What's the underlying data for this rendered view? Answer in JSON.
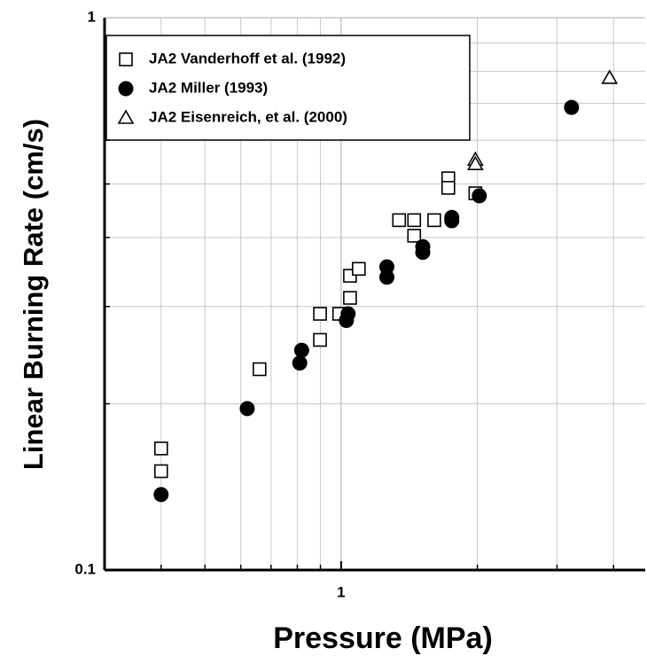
{
  "chart_data": {
    "type": "scatter",
    "xlabel": "Pressure (MPa)",
    "ylabel": "Linear Burning Rate (cm/s)",
    "xscale": "log",
    "yscale": "log",
    "grid": true,
    "xlim": [
      0.3,
      4.7
    ],
    "ylim": [
      0.1,
      1
    ],
    "xticks": [
      1
    ],
    "yticks": [
      0.1,
      1
    ],
    "xminor": [
      0.4,
      0.5,
      0.6,
      0.7,
      0.8,
      0.9,
      2,
      3,
      4
    ],
    "yminor": [
      0.2,
      0.3,
      0.4,
      0.5,
      0.6,
      0.7,
      0.8,
      0.9
    ],
    "legend": "upper left",
    "series": [
      {
        "name": "JA2 Vanderhoff et al. (1992)",
        "marker": "square",
        "color": "#000000",
        "x": [
          0.4,
          0.4,
          0.66,
          0.898,
          0.898,
          0.99,
          1.046,
          1.046,
          1.094,
          1.343,
          1.45,
          1.45,
          1.606,
          1.725,
          1.725,
          1.98
        ],
        "values": [
          0.166,
          0.151,
          0.231,
          0.291,
          0.261,
          0.291,
          0.311,
          0.341,
          0.351,
          0.43,
          0.43,
          0.403,
          0.43,
          0.512,
          0.492,
          0.481
        ]
      },
      {
        "name": "JA2 Miller (1993)",
        "marker": "circle",
        "color": "#000000",
        "x": [
          0.4,
          0.62,
          0.81,
          0.818,
          1.027,
          1.036,
          1.262,
          1.262,
          1.515,
          1.515,
          1.756,
          1.756,
          2.02,
          3.23
        ],
        "values": [
          0.137,
          0.196,
          0.237,
          0.25,
          0.283,
          0.291,
          0.339,
          0.354,
          0.376,
          0.385,
          0.429,
          0.435,
          0.476,
          0.688
        ]
      },
      {
        "name": "JA2 Eisenreich, et al. (2000)",
        "marker": "triangle",
        "color": "#000000",
        "x": [
          1.98,
          1.98,
          3.92
        ],
        "values": [
          0.553,
          0.543,
          0.778
        ]
      }
    ]
  }
}
